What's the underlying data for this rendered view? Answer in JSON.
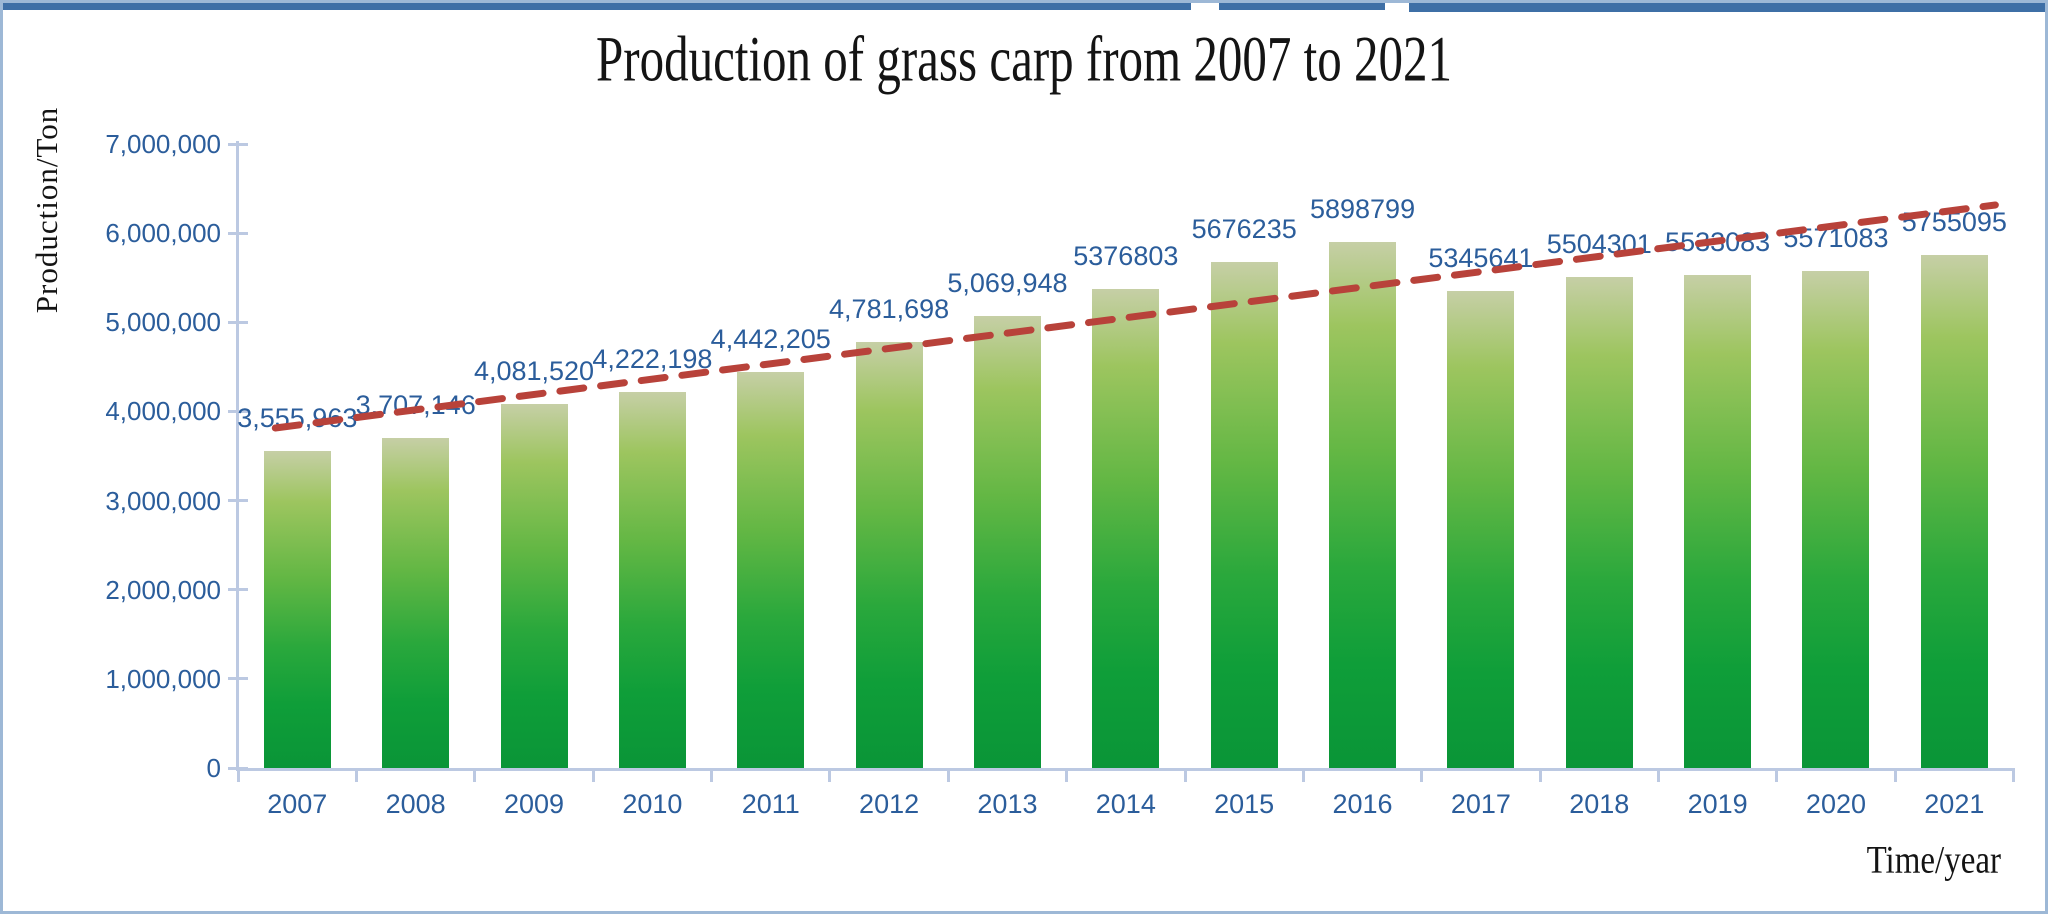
{
  "chart_data": {
    "type": "bar",
    "title": "Production of grass carp from 2007 to 2021",
    "xlabel": "Time/year",
    "ylabel": "Production/Ton",
    "categories": [
      "2007",
      "2008",
      "2009",
      "2010",
      "2011",
      "2012",
      "2013",
      "2014",
      "2015",
      "2016",
      "2017",
      "2018",
      "2019",
      "2020",
      "2021"
    ],
    "values": [
      3555963,
      3707146,
      4081520,
      4222198,
      4442205,
      4781698,
      5069948,
      5376803,
      5676235,
      5898799,
      5345641,
      5504301,
      5533083,
      5571083,
      5755095
    ],
    "value_labels": [
      "3,555,963",
      "3,707,146",
      "4,081,520",
      "4,222,198",
      "4,442,205",
      "4,781,698",
      "5,069,948",
      "5376803",
      "5676235",
      "5898799",
      "5345641",
      "5504301",
      "5533083",
      "5571083",
      "5755095"
    ],
    "ylim": [
      0,
      7000000
    ],
    "ytick_step": 1000000,
    "ytick_labels": [
      "0",
      "1,000,000",
      "2,000,000",
      "3,000,000",
      "4,000,000",
      "5,000,000",
      "6,000,000",
      "7,000,000"
    ],
    "grid": "off",
    "legend": "none",
    "trendline": {
      "style": "dashed",
      "color": "#b8423a",
      "start_value": 3814000,
      "end_value": 6316000
    },
    "colors": {
      "bar_gradient_top": "#c6cfa6",
      "bar_gradient_mid": "#63b744",
      "bar_gradient_bottom": "#0a9537",
      "text_blue": "#2b5d9b",
      "axis_line": "#bcc9e2",
      "title_black": "#141414",
      "frame_border": "#9db8d6",
      "top_strip": "#3e6fa6"
    }
  }
}
